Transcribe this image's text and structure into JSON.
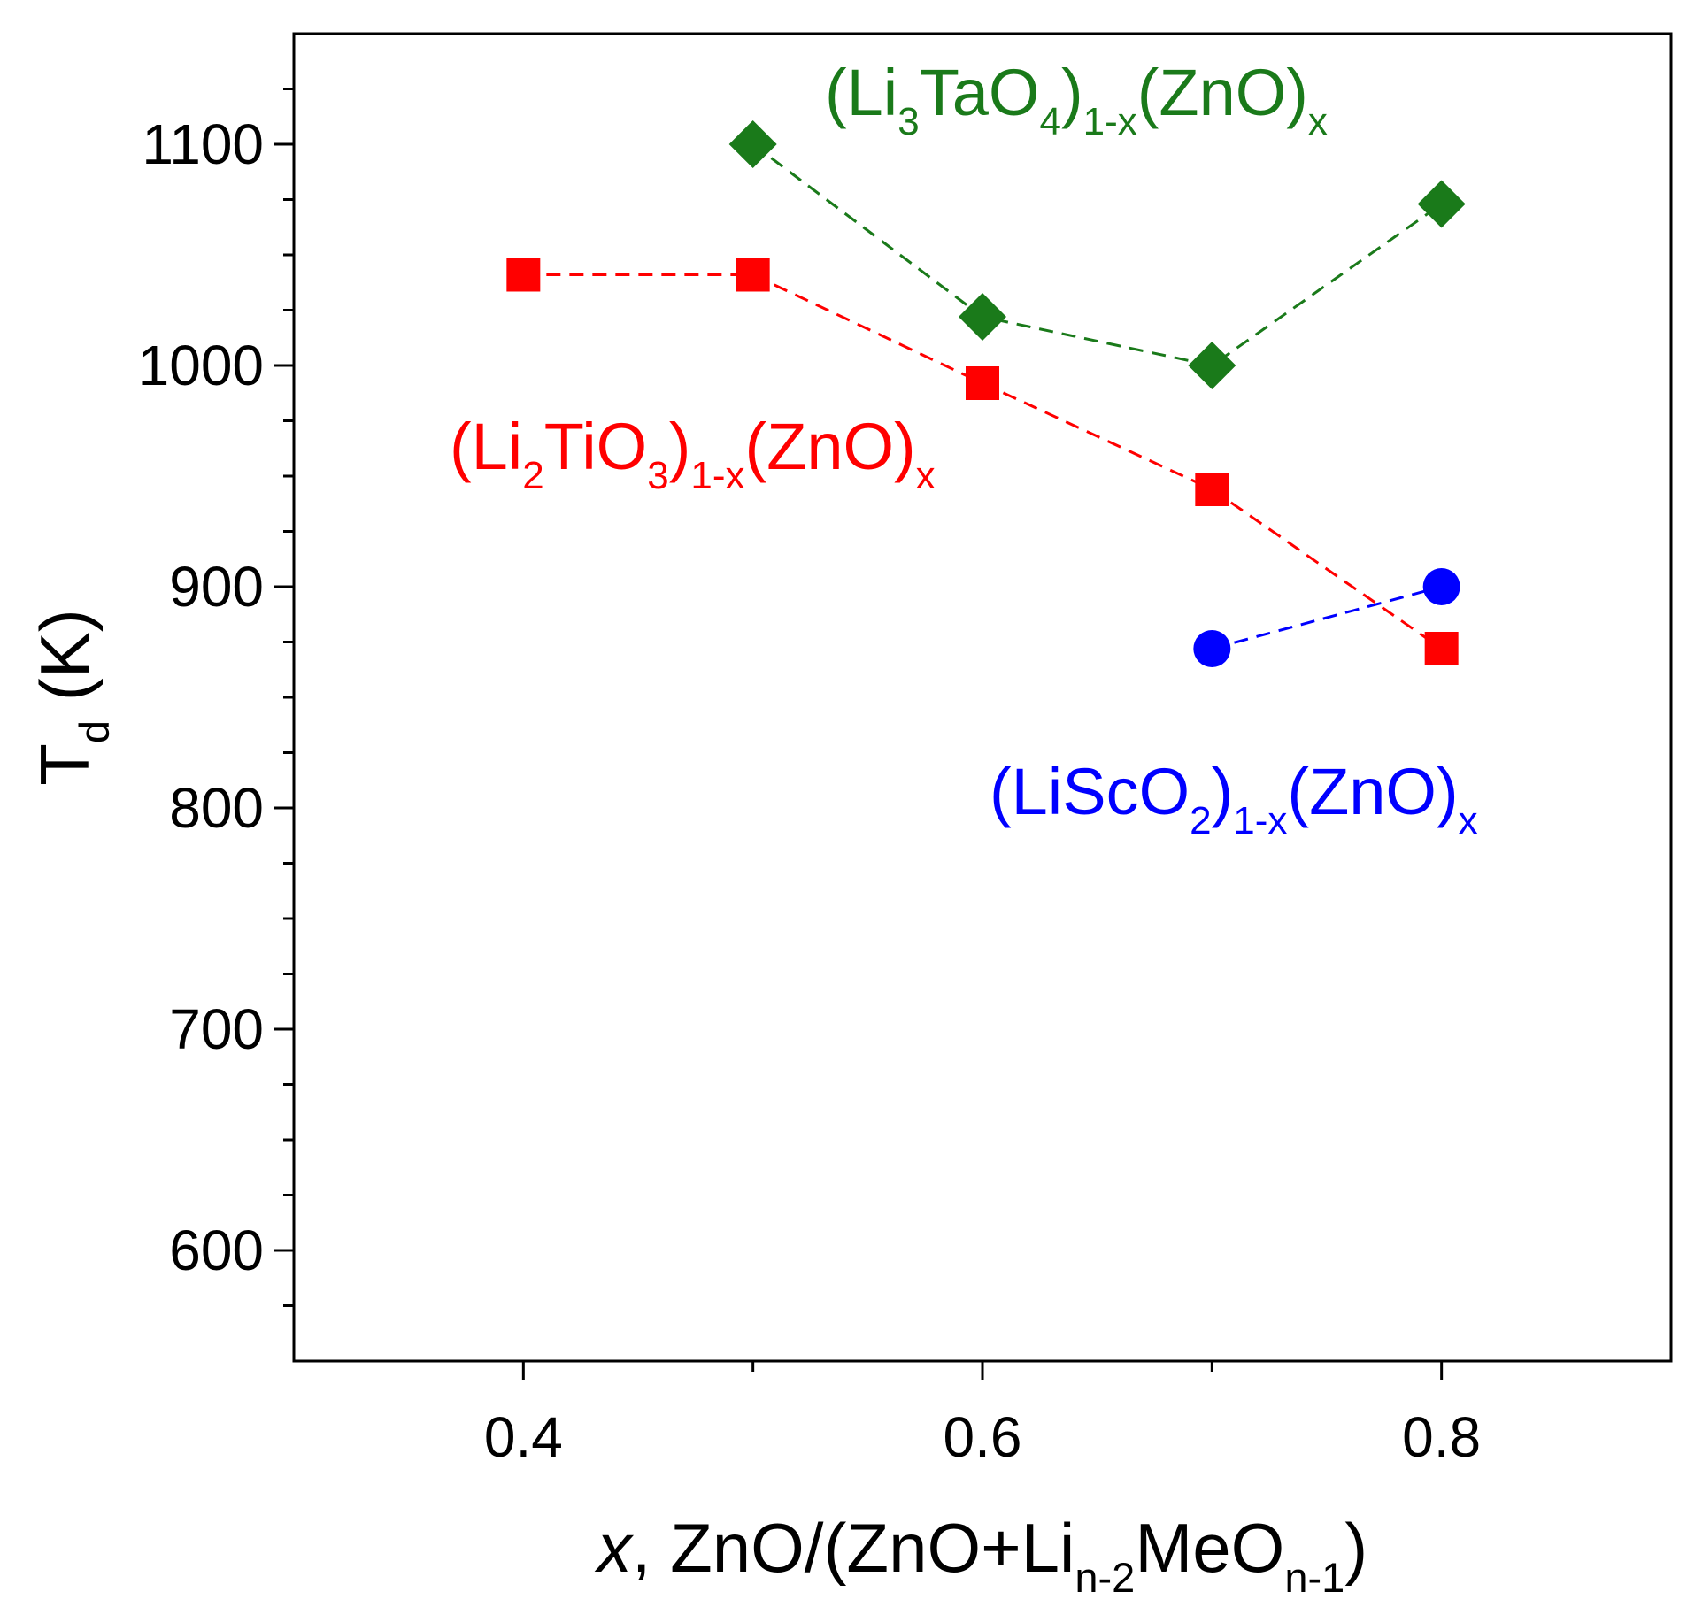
{
  "chart_data": {
    "type": "scatter",
    "title": "",
    "xlabel": {
      "parts": [
        {
          "t": "x",
          "style": "italic"
        },
        {
          "t": ", ZnO/(ZnO+Li"
        },
        {
          "t": "n-2",
          "style": "sub"
        },
        {
          "t": "MeO"
        },
        {
          "t": "n-1",
          "style": "sub"
        },
        {
          "t": ")"
        }
      ]
    },
    "ylabel": {
      "parts": [
        {
          "t": "T"
        },
        {
          "t": "d",
          "style": "sub"
        },
        {
          "t": " (K)"
        }
      ]
    },
    "xlim": [
      0.3,
      0.9
    ],
    "ylim": [
      550,
      1150
    ],
    "x_ticks": [
      0.4,
      0.6,
      0.8
    ],
    "x_tick_labels": [
      "0.4",
      "0.6",
      "0.8"
    ],
    "x_minor_ticks": [
      0.5,
      0.7
    ],
    "y_ticks": [
      600,
      700,
      800,
      900,
      1000,
      1100
    ],
    "y_tick_labels": [
      "600",
      "700",
      "800",
      "900",
      "1000",
      "1100"
    ],
    "y_minor_step": 25,
    "grid": false,
    "series": [
      {
        "name": "(Li3TaO4)1-x(ZnO)x",
        "color": "#1a7a1a",
        "marker": "diamond",
        "line": "dashed",
        "x": [
          0.5,
          0.6,
          0.7,
          0.8
        ],
        "y": [
          1100,
          1022,
          1000,
          1073
        ],
        "label_parts": [
          {
            "t": "(Li"
          },
          {
            "t": "3",
            "style": "sub"
          },
          {
            "t": "TaO"
          },
          {
            "t": "4",
            "style": "sub"
          },
          {
            "t": ")"
          },
          {
            "t": "1-x",
            "style": "sub"
          },
          {
            "t": "(ZnO)"
          },
          {
            "t": "x",
            "style": "sub"
          }
        ]
      },
      {
        "name": "(Li2TiO3)1-x(ZnO)x",
        "color": "#ff0000",
        "marker": "square",
        "line": "dashed",
        "x": [
          0.4,
          0.5,
          0.6,
          0.7,
          0.8
        ],
        "y": [
          1041,
          1041,
          992,
          944,
          872
        ],
        "label_parts": [
          {
            "t": "(Li"
          },
          {
            "t": "2",
            "style": "sub"
          },
          {
            "t": "TiO"
          },
          {
            "t": "3",
            "style": "sub"
          },
          {
            "t": ")"
          },
          {
            "t": "1-x",
            "style": "sub"
          },
          {
            "t": "(ZnO)"
          },
          {
            "t": "x",
            "style": "sub"
          }
        ]
      },
      {
        "name": "(LiScO2)1-x(ZnO)x",
        "color": "#0000ff",
        "marker": "circle",
        "line": "dashed",
        "x": [
          0.7,
          0.8
        ],
        "y": [
          872,
          900
        ],
        "label_parts": [
          {
            "t": "(LiScO"
          },
          {
            "t": "2",
            "style": "sub"
          },
          {
            "t": ")"
          },
          {
            "t": "1-x",
            "style": "sub"
          },
          {
            "t": "(ZnO)"
          },
          {
            "t": "x",
            "style": "sub"
          }
        ]
      }
    ]
  }
}
